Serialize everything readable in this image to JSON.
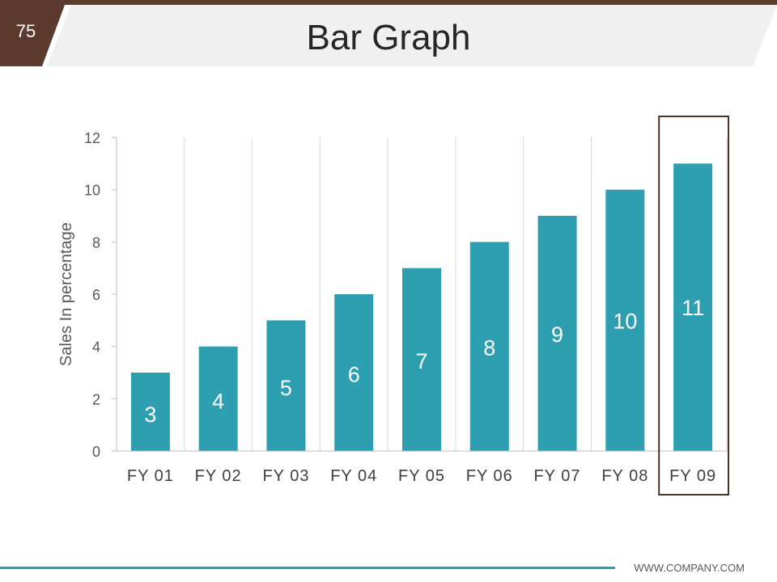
{
  "slide": {
    "page_number": "75",
    "title": "Bar Graph",
    "footer": "WWW.COMPANY.COM"
  },
  "colors": {
    "bar": "#2e9fb0",
    "accent_dark": "#5c3a2e",
    "header_band": "#f0f0f0",
    "highlight_box": "#4a3228",
    "footer_line": "#2e9fb0"
  },
  "chart_data": {
    "type": "bar",
    "categories": [
      "FY 01",
      "FY 02",
      "FY 03",
      "FY 04",
      "FY 05",
      "FY 06",
      "FY 07",
      "FY 08",
      "FY 09"
    ],
    "values": [
      3,
      4,
      5,
      6,
      7,
      8,
      9,
      10,
      11
    ],
    "data_labels": [
      "3",
      "4",
      "5",
      "6",
      "7",
      "8",
      "9",
      "10",
      "11"
    ],
    "ylabel": "Sales In percentage",
    "ylim": [
      0,
      12
    ],
    "yticks": [
      0,
      2,
      4,
      6,
      8,
      10,
      12
    ],
    "grid": "vertical",
    "highlighted_category": "FY 09"
  }
}
